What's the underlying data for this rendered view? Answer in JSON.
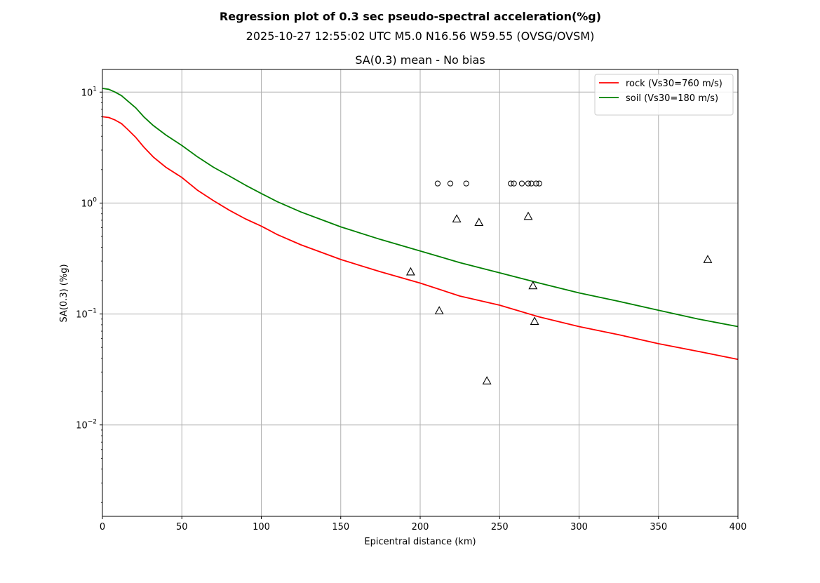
{
  "chart_data": {
    "type": "scatter",
    "suptitle": "Regression plot of 0.3 sec pseudo-spectral acceleration(%g)",
    "subtitle": "2025-10-27 12:55:02 UTC M5.0 N16.56 W59.55 (OVSG/OVSM)",
    "title": "SA(0.3) mean - No bias",
    "xlabel": "Epicentral distance (km)",
    "ylabel": "SA(0.3) (%g)",
    "xlim": [
      0,
      400
    ],
    "ylim": [
      0.0015,
      16
    ],
    "yscale": "log",
    "grid": true,
    "legend_position": "top-right",
    "x_ticks": [
      0,
      50,
      100,
      150,
      200,
      250,
      300,
      350,
      400
    ],
    "x_tick_labels": [
      "0",
      "50",
      "100",
      "150",
      "200",
      "250",
      "300",
      "350",
      "400"
    ],
    "y_ticks": [
      0.01,
      0.1,
      1,
      10
    ],
    "y_tick_labels": [
      {
        "base": "10",
        "exp": "−2"
      },
      {
        "base": "10",
        "exp": "−1"
      },
      {
        "base": "10",
        "exp": "0"
      },
      {
        "base": "10",
        "exp": "1"
      }
    ],
    "series": [
      {
        "name": "rock (Vs30=760 m/s)",
        "kind": "line",
        "color": "#ff0000",
        "x": [
          0,
          4,
          8,
          12,
          16,
          21,
          26,
          32,
          40,
          50,
          60,
          70,
          80,
          90,
          100,
          110,
          125,
          140,
          150,
          175,
          200,
          225,
          250,
          275,
          300,
          325,
          350,
          375,
          400
        ],
        "y": [
          6.0,
          5.9,
          5.6,
          5.2,
          4.6,
          3.9,
          3.2,
          2.6,
          2.1,
          1.7,
          1.3,
          1.05,
          0.86,
          0.72,
          0.62,
          0.52,
          0.42,
          0.35,
          0.31,
          0.24,
          0.19,
          0.145,
          0.12,
          0.094,
          0.077,
          0.065,
          0.054,
          0.046,
          0.039
        ]
      },
      {
        "name": "soil (Vs30=180 m/s)",
        "kind": "line",
        "color": "#008000",
        "x": [
          0,
          4,
          8,
          12,
          16,
          21,
          26,
          32,
          40,
          50,
          60,
          70,
          80,
          90,
          100,
          110,
          125,
          140,
          150,
          175,
          200,
          225,
          250,
          275,
          300,
          325,
          350,
          375,
          400
        ],
        "y": [
          10.8,
          10.6,
          10.0,
          9.3,
          8.3,
          7.2,
          6.0,
          5.0,
          4.1,
          3.3,
          2.6,
          2.1,
          1.75,
          1.45,
          1.22,
          1.03,
          0.83,
          0.69,
          0.61,
          0.47,
          0.37,
          0.29,
          0.235,
          0.19,
          0.155,
          0.13,
          0.108,
          0.09,
          0.077
        ]
      },
      {
        "name": "",
        "kind": "marker",
        "marker": "circle",
        "color": "#000000",
        "x": [
          211,
          219,
          229,
          257,
          259,
          264,
          268,
          270,
          273,
          275
        ],
        "y": [
          1.5,
          1.5,
          1.5,
          1.5,
          1.5,
          1.5,
          1.5,
          1.5,
          1.5,
          1.5
        ]
      },
      {
        "name": "",
        "kind": "marker",
        "marker": "triangle",
        "color": "#000000",
        "x": [
          194,
          212,
          223,
          237,
          242,
          268,
          271,
          272,
          381
        ],
        "y": [
          0.24,
          0.107,
          0.72,
          0.67,
          0.025,
          0.76,
          0.18,
          0.086,
          0.31
        ]
      }
    ]
  }
}
